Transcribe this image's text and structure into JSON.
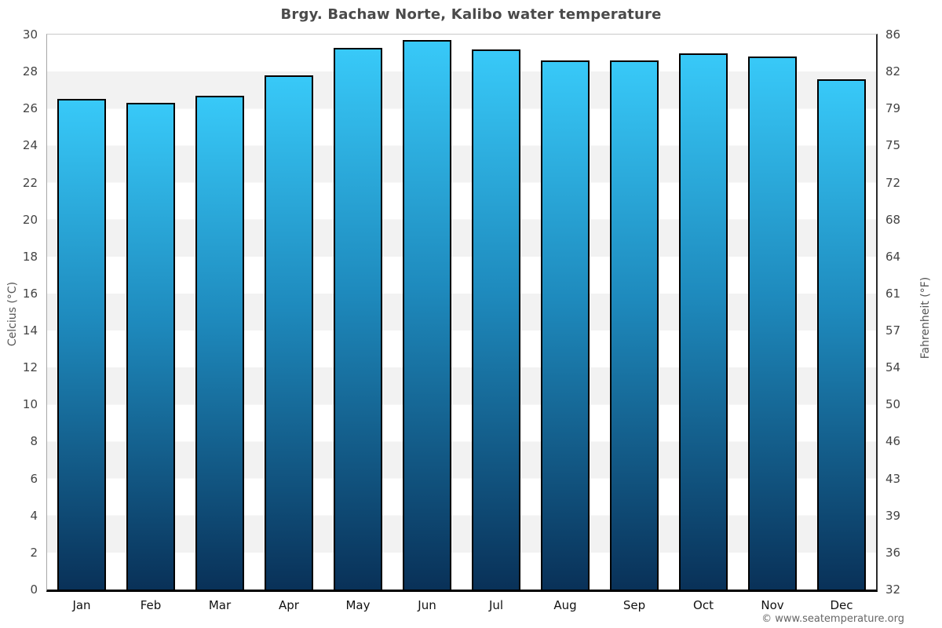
{
  "header": {
    "title": "Brgy. Bachaw Norte, Kalibo water temperature"
  },
  "axes": {
    "left_label": "Celcius (°C)",
    "right_label": "Fahrenheit (°F)"
  },
  "footer": {
    "credit": "© www.seatemperature.org"
  },
  "chart_data": {
    "type": "bar",
    "title": "Brgy. Bachaw Norte, Kalibo water temperature",
    "categories": [
      "Jan",
      "Feb",
      "Mar",
      "Apr",
      "May",
      "Jun",
      "Jul",
      "Aug",
      "Sep",
      "Oct",
      "Nov",
      "Dec"
    ],
    "series": [
      {
        "name": "Water temperature (°C)",
        "values": [
          26.5,
          26.3,
          26.7,
          27.8,
          29.3,
          29.7,
          29.2,
          28.6,
          28.6,
          29.0,
          28.8,
          27.6
        ]
      }
    ],
    "values_fahrenheit": [
      79.7,
      79.3,
      80.1,
      82.0,
      84.7,
      85.5,
      84.6,
      83.5,
      83.5,
      84.2,
      83.8,
      81.7
    ],
    "xlabel": "",
    "ylabel_left": "Celcius (°C)",
    "ylabel_right": "Fahrenheit (°F)",
    "ylim_celsius": [
      0,
      30
    ],
    "ytick_step_celsius": 2,
    "yticks": [
      {
        "c": 0,
        "f": 32
      },
      {
        "c": 2,
        "f": 36
      },
      {
        "c": 4,
        "f": 39
      },
      {
        "c": 6,
        "f": 43
      },
      {
        "c": 8,
        "f": 46
      },
      {
        "c": 10,
        "f": 50
      },
      {
        "c": 12,
        "f": 54
      },
      {
        "c": 14,
        "f": 57
      },
      {
        "c": 16,
        "f": 61
      },
      {
        "c": 18,
        "f": 64
      },
      {
        "c": 20,
        "f": 68
      },
      {
        "c": 22,
        "f": 72
      },
      {
        "c": 24,
        "f": 75
      },
      {
        "c": 26,
        "f": 79
      },
      {
        "c": 28,
        "f": 82
      },
      {
        "c": 30,
        "f": 86
      }
    ],
    "grid": "alternating horizontal bands every 2°C, white then light gray from the top",
    "legend_position": "none",
    "colors": {
      "bar_gradient_top": "#38c9f8",
      "bar_gradient_mid": "#1e8abd",
      "bar_gradient_bottom": "#093158",
      "bar_border": "#000000",
      "band_light": "#ffffff",
      "band_gray": "#f2f2f2",
      "title_text": "#4a4a4a",
      "tick_text": "#444444",
      "month_text": "#111111",
      "axis_label_text": "#555555",
      "footer_text": "#666666"
    }
  }
}
